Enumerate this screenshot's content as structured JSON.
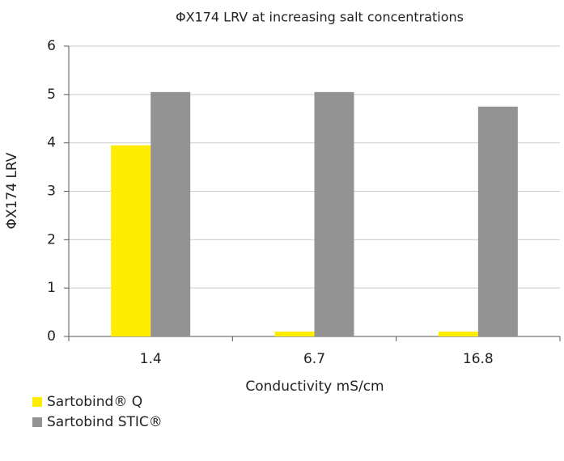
{
  "chart_data": {
    "type": "bar",
    "title": "ΦX174 LRV at increasing salt concentrations",
    "xlabel": "Conductivity mS/cm",
    "ylabel": "ΦX174 LRV",
    "categories": [
      "1.4",
      "6.7",
      "16.8"
    ],
    "series": [
      {
        "name": "Sartobind® Q",
        "color": "#ffed00",
        "values": [
          3.95,
          0.1,
          0.1
        ]
      },
      {
        "name": "Sartobind STIC®",
        "color": "#939393",
        "values": [
          5.05,
          5.05,
          4.75
        ]
      }
    ],
    "ylim": [
      0,
      6
    ],
    "yticks": [
      0,
      1,
      2,
      3,
      4,
      5,
      6
    ],
    "grid": true
  }
}
